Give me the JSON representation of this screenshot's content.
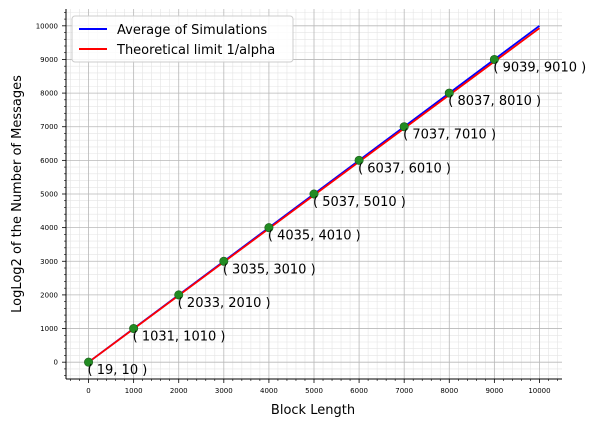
{
  "chart_data": {
    "type": "line",
    "xlabel": "Block Length",
    "ylabel": "LogLog2 of the Number of Messages",
    "xlim": [
      -500,
      10500
    ],
    "ylim": [
      -500,
      10500
    ],
    "xticks": [
      0,
      1000,
      2000,
      3000,
      4000,
      5000,
      6000,
      7000,
      8000,
      9000,
      10000
    ],
    "yticks": [
      0,
      1000,
      2000,
      3000,
      4000,
      5000,
      6000,
      7000,
      8000,
      9000,
      10000
    ],
    "grid": true,
    "legend_position": "top-left",
    "series": [
      {
        "name": "Average of Simulations",
        "color": "#0000ff",
        "x": [
          0,
          10000
        ],
        "y": [
          0,
          10000
        ]
      },
      {
        "name": "Theoretical limit 1/alpha",
        "color": "#ff0000",
        "x": [
          0,
          10000
        ],
        "y": [
          0,
          9930
        ]
      }
    ],
    "points": {
      "color": "#228b22",
      "x": [
        0,
        1000,
        2000,
        3000,
        4000,
        5000,
        6000,
        7000,
        8000,
        9000
      ],
      "y": [
        0,
        1000,
        2000,
        3000,
        4000,
        5000,
        6000,
        7000,
        8000,
        9000
      ]
    },
    "annotations": [
      "( 19, 10 )",
      "( 1031, 1010 )",
      "( 2033, 2010 )",
      "( 3035, 3010 )",
      "( 4035, 4010 )",
      "( 5037, 5010 )",
      "( 6037, 6010 )",
      "( 7037, 7010 )",
      "( 8037, 8010 )",
      "( 9039, 9010 )"
    ]
  }
}
